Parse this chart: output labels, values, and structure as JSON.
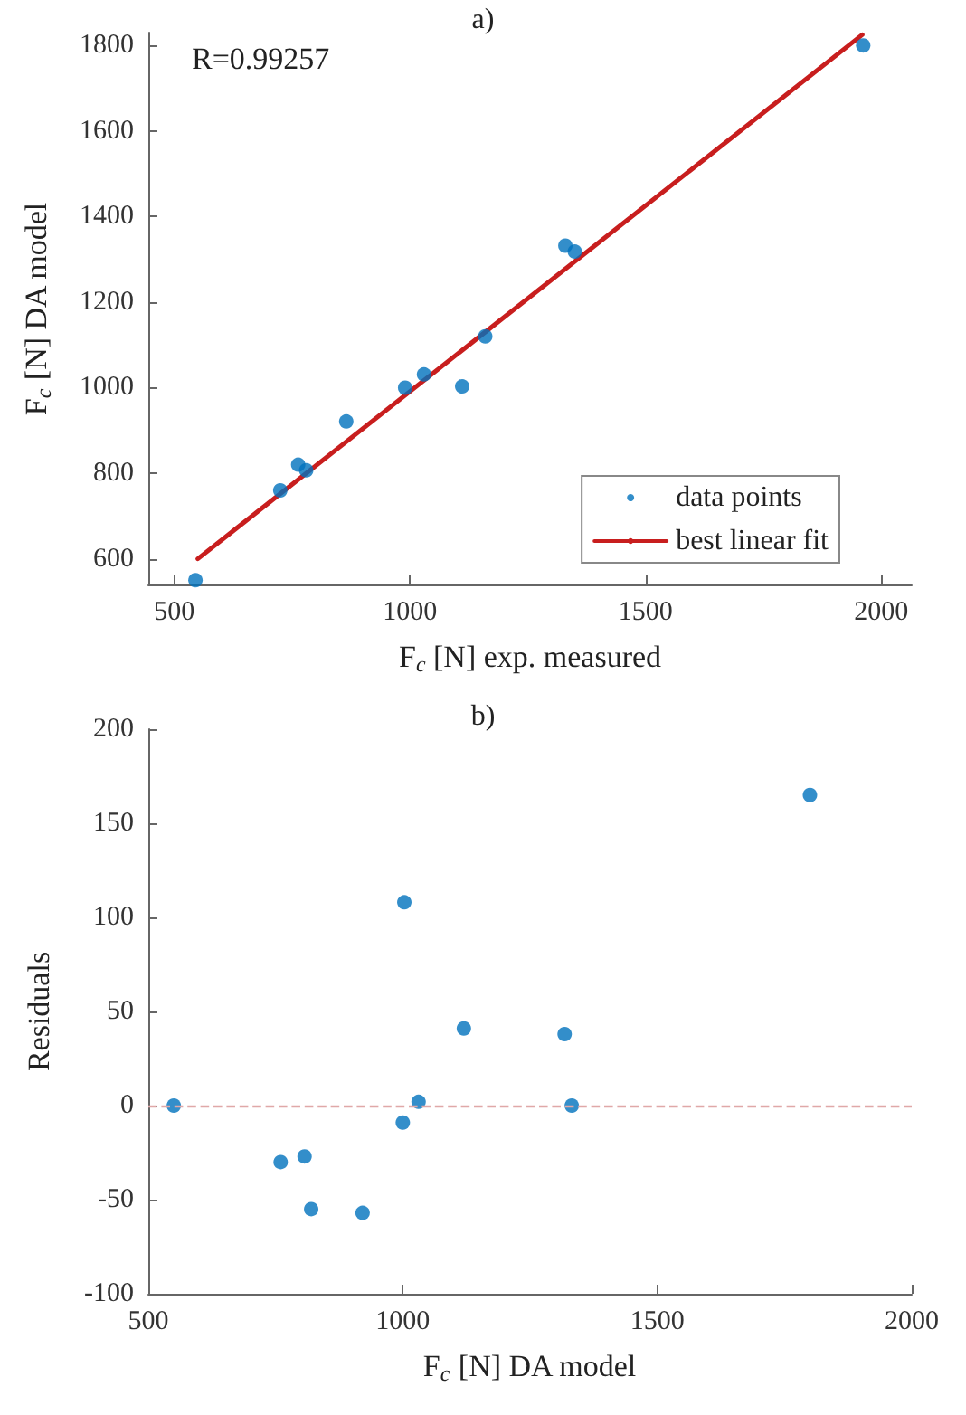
{
  "chart_data": [
    {
      "type": "scatter",
      "title": "a)",
      "xlabel": "F$_{c}$ [N] exp. measured",
      "ylabel": "F$_{c}$ [N] DA model",
      "annotations": [
        "R=0.99257"
      ],
      "xlim": [
        445,
        2065
      ],
      "ylim": [
        540,
        1830
      ],
      "xticks": [
        500,
        1000,
        1500,
        2000
      ],
      "yticks": [
        600,
        800,
        1000,
        1200,
        1400,
        1600,
        1800
      ],
      "grid": false,
      "legend": "bottom right",
      "marker": "circle",
      "series": [
        {
          "name": "data points",
          "color": "#0072bd",
          "x": [
            545,
            725,
            763,
            780,
            865,
            990,
            1030,
            1111,
            1160,
            1330,
            1350,
            1962
          ],
          "values": [
            550,
            760,
            820,
            807,
            921,
            1000,
            1031,
            1003,
            1120,
            1332,
            1318,
            1800
          ]
        },
        {
          "name": "best linear fit",
          "type": "line",
          "color": "#c81e1e",
          "marker": "none",
          "line_style": "solid",
          "x": [
            550,
            1960
          ],
          "values": [
            600,
            1825
          ]
        }
      ]
    },
    {
      "type": "scatter",
      "title": "b)",
      "xlabel": "F$_{c}$ [N] DA model",
      "ylabel": "Residuals",
      "xlim": [
        500,
        2000
      ],
      "ylim": [
        -100,
        200
      ],
      "xticks": [
        500,
        1000,
        1500,
        2000
      ],
      "yticks": [
        -100,
        -50,
        0,
        50,
        100,
        150,
        200
      ],
      "grid": false,
      "legend": false,
      "marker": "circle",
      "ref_lines": [
        {
          "axis": "y",
          "value": 0,
          "color": "#e0a8a8",
          "line_style": "dashed"
        }
      ],
      "series": [
        {
          "color": "#0072bd",
          "x": [
            550,
            760,
            807,
            820,
            921,
            1000,
            1003,
            1031,
            1120,
            1318,
            1332,
            1800
          ],
          "values": [
            0,
            -30,
            -27,
            -55,
            -57,
            -9,
            108,
            2,
            41,
            38,
            0,
            165
          ]
        }
      ]
    }
  ]
}
